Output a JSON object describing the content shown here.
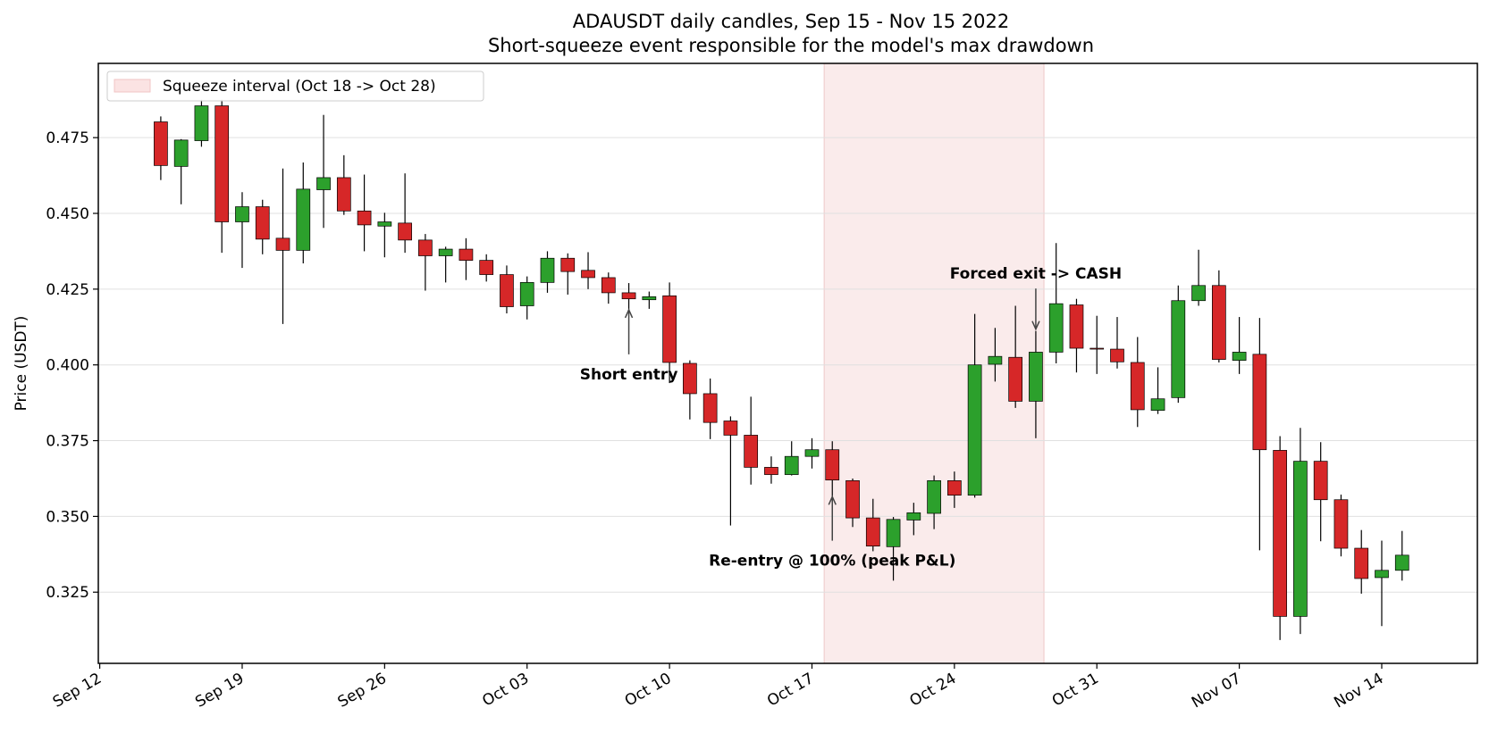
{
  "chart_data": {
    "type": "candlestick",
    "title": "ADAUSDT daily candles, Sep 15 - Nov 15 2022",
    "subtitle": "Short-squeeze event responsible for the model's max drawdown",
    "ylabel": "Price (USDT)",
    "xlabel": "",
    "xlim": [
      "2022-09-12",
      "2022-11-18"
    ],
    "ylim": [
      0.3015,
      0.4995
    ],
    "x_ticks": [
      {
        "date": "2022-09-12",
        "label": "Sep 12"
      },
      {
        "date": "2022-09-19",
        "label": "Sep 19"
      },
      {
        "date": "2022-09-26",
        "label": "Sep 26"
      },
      {
        "date": "2022-10-03",
        "label": "Oct 03"
      },
      {
        "date": "2022-10-10",
        "label": "Oct 10"
      },
      {
        "date": "2022-10-17",
        "label": "Oct 17"
      },
      {
        "date": "2022-10-24",
        "label": "Oct 24"
      },
      {
        "date": "2022-10-31",
        "label": "Oct 31"
      },
      {
        "date": "2022-11-07",
        "label": "Nov 07"
      },
      {
        "date": "2022-11-14",
        "label": "Nov 14"
      }
    ],
    "y_ticks": [
      {
        "value": 0.325,
        "label": "0.325"
      },
      {
        "value": 0.35,
        "label": "0.350"
      },
      {
        "value": 0.375,
        "label": "0.375"
      },
      {
        "value": 0.4,
        "label": "0.400"
      },
      {
        "value": 0.425,
        "label": "0.425"
      },
      {
        "value": 0.45,
        "label": "0.450"
      },
      {
        "value": 0.475,
        "label": "0.475"
      }
    ],
    "grid": "horizontal",
    "legend": {
      "placement": "top-left",
      "entries": [
        {
          "label": "Squeeze interval (Oct 18 -> Oct 28)",
          "color": "#fbe3e3"
        }
      ]
    },
    "shaded_interval": {
      "start": "2022-10-18",
      "end": "2022-10-28",
      "color": "#f3c0c0"
    },
    "colors": {
      "up": "#2ca02c",
      "down": "#d62728",
      "edge": "#000000",
      "wick": "#000000",
      "grid": "#e0e0e0"
    },
    "candles": [
      {
        "date": "2022-09-15",
        "open": 0.4802,
        "high": 0.482,
        "low": 0.461,
        "close": 0.4658
      },
      {
        "date": "2022-09-16",
        "open": 0.4655,
        "high": 0.4745,
        "low": 0.453,
        "close": 0.4742
      },
      {
        "date": "2022-09-17",
        "open": 0.474,
        "high": 0.4875,
        "low": 0.472,
        "close": 0.4855
      },
      {
        "date": "2022-09-18",
        "open": 0.4855,
        "high": 0.4875,
        "low": 0.437,
        "close": 0.4472
      },
      {
        "date": "2022-09-19",
        "open": 0.4472,
        "high": 0.457,
        "low": 0.432,
        "close": 0.4522
      },
      {
        "date": "2022-09-20",
        "open": 0.4522,
        "high": 0.4545,
        "low": 0.4365,
        "close": 0.4415
      },
      {
        "date": "2022-09-21",
        "open": 0.4418,
        "high": 0.4648,
        "low": 0.4135,
        "close": 0.4378
      },
      {
        "date": "2022-09-22",
        "open": 0.4378,
        "high": 0.4668,
        "low": 0.4335,
        "close": 0.458
      },
      {
        "date": "2022-09-23",
        "open": 0.4578,
        "high": 0.4825,
        "low": 0.4452,
        "close": 0.4618
      },
      {
        "date": "2022-09-24",
        "open": 0.4618,
        "high": 0.4692,
        "low": 0.4495,
        "close": 0.4508
      },
      {
        "date": "2022-09-25",
        "open": 0.4508,
        "high": 0.4628,
        "low": 0.4375,
        "close": 0.4462
      },
      {
        "date": "2022-09-26",
        "open": 0.4458,
        "high": 0.4502,
        "low": 0.4355,
        "close": 0.4472
      },
      {
        "date": "2022-09-27",
        "open": 0.4468,
        "high": 0.4632,
        "low": 0.437,
        "close": 0.4412
      },
      {
        "date": "2022-09-28",
        "open": 0.4412,
        "high": 0.4432,
        "low": 0.4245,
        "close": 0.436
      },
      {
        "date": "2022-09-29",
        "open": 0.436,
        "high": 0.439,
        "low": 0.4272,
        "close": 0.4382
      },
      {
        "date": "2022-09-30",
        "open": 0.4382,
        "high": 0.4418,
        "low": 0.428,
        "close": 0.4345
      },
      {
        "date": "2022-10-01",
        "open": 0.4345,
        "high": 0.4365,
        "low": 0.4275,
        "close": 0.4298
      },
      {
        "date": "2022-10-02",
        "open": 0.4298,
        "high": 0.4328,
        "low": 0.417,
        "close": 0.4192
      },
      {
        "date": "2022-10-03",
        "open": 0.4195,
        "high": 0.4292,
        "low": 0.415,
        "close": 0.4272
      },
      {
        "date": "2022-10-04",
        "open": 0.4272,
        "high": 0.4375,
        "low": 0.4238,
        "close": 0.4352
      },
      {
        "date": "2022-10-05",
        "open": 0.4352,
        "high": 0.4368,
        "low": 0.4232,
        "close": 0.4308
      },
      {
        "date": "2022-10-06",
        "open": 0.4312,
        "high": 0.4372,
        "low": 0.425,
        "close": 0.4288
      },
      {
        "date": "2022-10-07",
        "open": 0.4288,
        "high": 0.4305,
        "low": 0.4202,
        "close": 0.4238
      },
      {
        "date": "2022-10-08",
        "open": 0.4238,
        "high": 0.427,
        "low": 0.4175,
        "close": 0.4218
      },
      {
        "date": "2022-10-09",
        "open": 0.4215,
        "high": 0.4242,
        "low": 0.4185,
        "close": 0.4225
      },
      {
        "date": "2022-10-10",
        "open": 0.4228,
        "high": 0.4272,
        "low": 0.394,
        "close": 0.4008
      },
      {
        "date": "2022-10-11",
        "open": 0.4005,
        "high": 0.4015,
        "low": 0.382,
        "close": 0.3905
      },
      {
        "date": "2022-10-12",
        "open": 0.3905,
        "high": 0.3955,
        "low": 0.3755,
        "close": 0.381
      },
      {
        "date": "2022-10-13",
        "open": 0.3815,
        "high": 0.383,
        "low": 0.347,
        "close": 0.3768
      },
      {
        "date": "2022-10-14",
        "open": 0.3768,
        "high": 0.3895,
        "low": 0.3605,
        "close": 0.3662
      },
      {
        "date": "2022-10-15",
        "open": 0.3662,
        "high": 0.3698,
        "low": 0.3608,
        "close": 0.3638
      },
      {
        "date": "2022-10-16",
        "open": 0.3638,
        "high": 0.3748,
        "low": 0.3635,
        "close": 0.3698
      },
      {
        "date": "2022-10-17",
        "open": 0.3698,
        "high": 0.3758,
        "low": 0.3658,
        "close": 0.372
      },
      {
        "date": "2022-10-18",
        "open": 0.372,
        "high": 0.3748,
        "low": 0.3548,
        "close": 0.362
      },
      {
        "date": "2022-10-19",
        "open": 0.3618,
        "high": 0.3625,
        "low": 0.3465,
        "close": 0.3495
      },
      {
        "date": "2022-10-20",
        "open": 0.3495,
        "high": 0.3558,
        "low": 0.3385,
        "close": 0.3402
      },
      {
        "date": "2022-10-21",
        "open": 0.34,
        "high": 0.3498,
        "low": 0.3288,
        "close": 0.349
      },
      {
        "date": "2022-10-22",
        "open": 0.3488,
        "high": 0.3545,
        "low": 0.3438,
        "close": 0.3512
      },
      {
        "date": "2022-10-23",
        "open": 0.351,
        "high": 0.3635,
        "low": 0.3458,
        "close": 0.3618
      },
      {
        "date": "2022-10-24",
        "open": 0.3618,
        "high": 0.3648,
        "low": 0.3528,
        "close": 0.357
      },
      {
        "date": "2022-10-25",
        "open": 0.357,
        "high": 0.4168,
        "low": 0.3562,
        "close": 0.4
      },
      {
        "date": "2022-10-26",
        "open": 0.4002,
        "high": 0.4122,
        "low": 0.3945,
        "close": 0.4028
      },
      {
        "date": "2022-10-27",
        "open": 0.4025,
        "high": 0.4195,
        "low": 0.3858,
        "close": 0.388
      },
      {
        "date": "2022-10-28",
        "open": 0.388,
        "high": 0.4112,
        "low": 0.3758,
        "close": 0.4042
      },
      {
        "date": "2022-10-29",
        "open": 0.4042,
        "high": 0.4402,
        "low": 0.4005,
        "close": 0.4202
      },
      {
        "date": "2022-10-30",
        "open": 0.4198,
        "high": 0.4218,
        "low": 0.3975,
        "close": 0.4055
      },
      {
        "date": "2022-10-31",
        "open": 0.4055,
        "high": 0.4162,
        "low": 0.397,
        "close": 0.4052
      },
      {
        "date": "2022-11-01",
        "open": 0.4052,
        "high": 0.4158,
        "low": 0.3988,
        "close": 0.401
      },
      {
        "date": "2022-11-02",
        "open": 0.4008,
        "high": 0.4092,
        "low": 0.3795,
        "close": 0.3852
      },
      {
        "date": "2022-11-03",
        "open": 0.385,
        "high": 0.3992,
        "low": 0.3838,
        "close": 0.3888
      },
      {
        "date": "2022-11-04",
        "open": 0.3892,
        "high": 0.4262,
        "low": 0.3875,
        "close": 0.4212
      },
      {
        "date": "2022-11-05",
        "open": 0.4212,
        "high": 0.438,
        "low": 0.4195,
        "close": 0.4262
      },
      {
        "date": "2022-11-06",
        "open": 0.4262,
        "high": 0.4312,
        "low": 0.4008,
        "close": 0.4018
      },
      {
        "date": "2022-11-07",
        "open": 0.4015,
        "high": 0.4158,
        "low": 0.397,
        "close": 0.4042
      },
      {
        "date": "2022-11-08",
        "open": 0.4035,
        "high": 0.4155,
        "low": 0.3388,
        "close": 0.372
      },
      {
        "date": "2022-11-09",
        "open": 0.3718,
        "high": 0.3765,
        "low": 0.3092,
        "close": 0.317
      },
      {
        "date": "2022-11-10",
        "open": 0.317,
        "high": 0.3792,
        "low": 0.3112,
        "close": 0.3682
      },
      {
        "date": "2022-11-11",
        "open": 0.3682,
        "high": 0.3745,
        "low": 0.3418,
        "close": 0.3555
      },
      {
        "date": "2022-11-12",
        "open": 0.3555,
        "high": 0.3572,
        "low": 0.3368,
        "close": 0.3395
      },
      {
        "date": "2022-11-13",
        "open": 0.3395,
        "high": 0.3455,
        "low": 0.3245,
        "close": 0.3295
      },
      {
        "date": "2022-11-14",
        "open": 0.3298,
        "high": 0.342,
        "low": 0.3138,
        "close": 0.3322
      },
      {
        "date": "2022-11-15",
        "open": 0.3322,
        "high": 0.3452,
        "low": 0.3288,
        "close": 0.3372
      }
    ],
    "annotations": [
      {
        "text": "Short entry",
        "date": "2022-10-08",
        "price": 0.4182,
        "text_date": "2022-10-08",
        "text_price": 0.397,
        "direction": "up"
      },
      {
        "text": "Re-entry @ 100% (peak P&L)",
        "date": "2022-10-18",
        "price": 0.3565,
        "text_date": "2022-10-18",
        "text_price": 0.3355,
        "direction": "up"
      },
      {
        "text": "Forced exit -> CASH",
        "date": "2022-10-28",
        "price": 0.4118,
        "text_date": "2022-10-28",
        "text_price": 0.4302,
        "direction": "down"
      }
    ]
  }
}
